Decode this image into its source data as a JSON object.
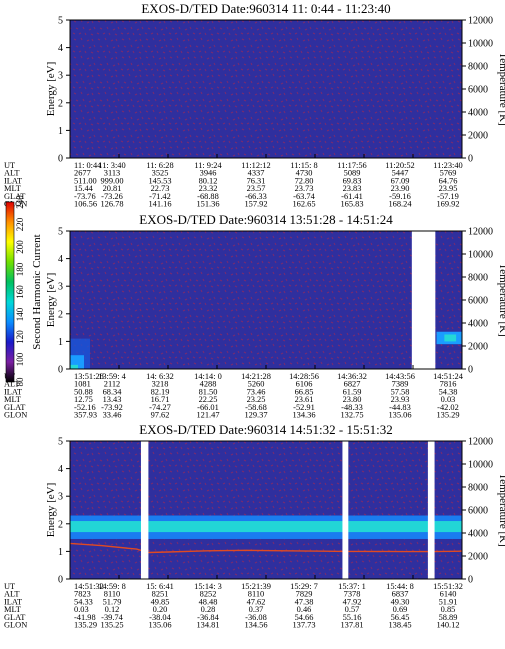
{
  "colors": {
    "background_noise": "#2f2f9e",
    "speckle": "#7a2a6e",
    "temperature_trace": "#e04a22",
    "data_gap": "#ffffff"
  },
  "colorbar": {
    "label": "Second Harmonic Current",
    "ticks": [
      "80",
      "100",
      "120",
      "140",
      "160",
      "180",
      "200",
      "220",
      "240"
    ],
    "range": [
      80,
      240
    ],
    "colors": [
      "#000000",
      "#7b1fa2",
      "#1a1ac8",
      "#0a8dff",
      "#00d8d8",
      "#00c060",
      "#70e000",
      "#ffff00",
      "#ff9000",
      "#e00000"
    ]
  },
  "chart_data": [
    {
      "type": "heatmap",
      "title": "EXOS-D/TED  Date:960314  11: 0:44 - 11:23:40",
      "ylabel": "Energy [eV]",
      "y2label": "Temperature [K]",
      "ylim": [
        0,
        5
      ],
      "y2lim": [
        0,
        12000
      ],
      "yticks": [
        "0",
        "1",
        "2",
        "3",
        "4",
        "5"
      ],
      "y2ticks": [
        "0",
        "2000",
        "4000",
        "6000",
        "8000",
        "10000",
        "12000"
      ],
      "gaps": [],
      "band": null,
      "left_blob": false,
      "right_blob": false,
      "temperature_trace": null,
      "ephemeris": {
        "row_labels": [
          "UT",
          "ALT",
          "ILAT",
          "MLT",
          "GLAT",
          "GLON"
        ],
        "columns": [
          [
            "11: 0:44",
            "2677",
            "511.00",
            "15.44",
            "-73.76",
            "106.56"
          ],
          [
            "11: 3:40",
            "3113",
            "999.00",
            "20.81",
            "-73.26",
            "126.78"
          ],
          [
            "11: 6:28",
            "3525",
            "145.53",
            "22.73",
            "-71.42",
            "141.16"
          ],
          [
            "11: 9:24",
            "3946",
            "80.12",
            "23.32",
            "-68.88",
            "151.36"
          ],
          [
            "11:12:12",
            "4337",
            "76.31",
            "23.57",
            "-66.33",
            "157.92"
          ],
          [
            "11:15: 8",
            "4730",
            "72.80",
            "23.73",
            "-63.74",
            "162.65"
          ],
          [
            "11:17:56",
            "5089",
            "69.83",
            "23.83",
            "-61.41",
            "165.83"
          ],
          [
            "11:20:52",
            "5447",
            "67.09",
            "23.90",
            "-59.16",
            "168.24"
          ],
          [
            "11:23:40",
            "5769",
            "64.76",
            "23.95",
            "-57.19",
            "169.92"
          ]
        ]
      }
    },
    {
      "type": "heatmap",
      "title": "EXOS-D/TED  Date:960314  13:51:28 - 14:51:24",
      "ylabel": "Energy [eV]",
      "y2label": "Temperature [K]",
      "ylim": [
        0,
        5
      ],
      "y2lim": [
        0,
        12000
      ],
      "yticks": [
        "0",
        "1",
        "2",
        "3",
        "4",
        "5"
      ],
      "y2ticks": [
        "0",
        "2000",
        "4000",
        "6000",
        "8000",
        "10000",
        "12000"
      ],
      "gaps": [
        [
          0.872,
          0.932
        ]
      ],
      "band": null,
      "left_blob": true,
      "right_blob": true,
      "temperature_trace": null,
      "ephemeris": {
        "row_labels": [
          "UT",
          "ALT",
          "ILAT",
          "MLT",
          "GLAT",
          "GLON"
        ],
        "columns": [
          [
            "13:51:28",
            "1081",
            "50.88",
            "12.75",
            "-52.16",
            "357.93"
          ],
          [
            "13:59: 4",
            "2112",
            "68.34",
            "13.43",
            "-73.92",
            "33.46"
          ],
          [
            "14: 6:32",
            "3218",
            "82.19",
            "16.71",
            "-74.27",
            "97.62"
          ],
          [
            "14:14: 0",
            "4288",
            "81.50",
            "22.25",
            "-66.01",
            "121.47"
          ],
          [
            "14:21:28",
            "5260",
            "73.46",
            "23.25",
            "-58.68",
            "129.37"
          ],
          [
            "14:28:56",
            "6106",
            "66.85",
            "23.61",
            "-52.91",
            "134.36"
          ],
          [
            "14:36:32",
            "6827",
            "61.59",
            "23.80",
            "-48.33",
            "132.75"
          ],
          [
            "14:43:56",
            "7389",
            "57.58",
            "23.93",
            "-44.83",
            "135.06"
          ],
          [
            "14:51:24",
            "7816",
            "54.38",
            "0.03",
            "-42.02",
            "135.29"
          ]
        ]
      }
    },
    {
      "type": "heatmap",
      "title": "EXOS-D/TED  Date:960314  14:51:32 - 15:51:32",
      "ylabel": "Energy [eV]",
      "y2label": "Temperature [K]",
      "ylim": [
        0,
        5
      ],
      "y2lim": [
        0,
        12000
      ],
      "yticks": [
        "0",
        "1",
        "2",
        "3",
        "4",
        "5"
      ],
      "y2ticks": [
        "0",
        "2000",
        "4000",
        "6000",
        "8000",
        "10000",
        "12000"
      ],
      "gaps": [
        [
          0.181,
          0.2
        ],
        [
          0.695,
          0.71
        ],
        [
          0.913,
          0.93
        ]
      ],
      "band": {
        "energy_low": 1.45,
        "energy_high": 2.3,
        "energy_core": 1.9
      },
      "left_blob": false,
      "right_blob": false,
      "temperature_trace": {
        "x": [
          0.0,
          0.08,
          0.17,
          0.2,
          0.25,
          0.35,
          0.45,
          0.55,
          0.65,
          0.7,
          0.75,
          0.85,
          0.93,
          1.0
        ],
        "y": [
          3100,
          2900,
          2600,
          2300,
          2350,
          2450,
          2500,
          2450,
          2420,
          2400,
          2400,
          2380,
          2380,
          2420
        ]
      },
      "ephemeris": {
        "row_labels": [
          "UT",
          "ALT",
          "ILAT",
          "MLT",
          "GLAT",
          "GLON"
        ],
        "columns": [
          [
            "14:51:32",
            "7823",
            "54.33",
            "0.03",
            "-41.98",
            "135.29"
          ],
          [
            "14:59: 8",
            "8110",
            "51.79",
            "0.12",
            "-39.74",
            "135.25"
          ],
          [
            "15: 6:41",
            "8251",
            "49.85",
            "0.20",
            "-38.04",
            "135.06"
          ],
          [
            "15:14: 3",
            "8252",
            "48.48",
            "0.28",
            "-36.84",
            "134.81"
          ],
          [
            "15:21:39",
            "8110",
            "47.62",
            "0.37",
            "-36.08",
            "134.56"
          ],
          [
            "15:29: 7",
            "7829",
            "47.38",
            "0.46",
            "54.66",
            "137.73"
          ],
          [
            "15:37: 1",
            "7378",
            "47.92",
            "0.57",
            "55.16",
            "137.81"
          ],
          [
            "15:44: 8",
            "6837",
            "49.30",
            "0.69",
            "56.45",
            "138.45"
          ],
          [
            "15:51:32",
            "6140",
            "51.91",
            "0.85",
            "58.89",
            "140.12"
          ]
        ]
      }
    }
  ]
}
